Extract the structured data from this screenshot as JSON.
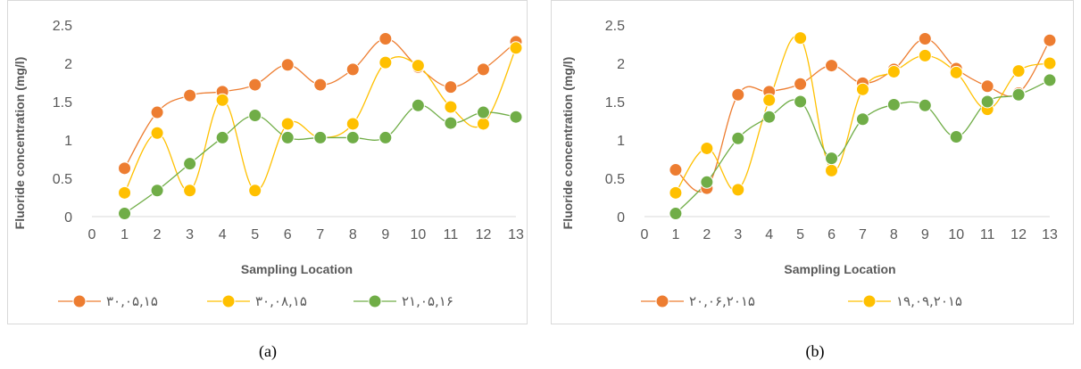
{
  "captions": {
    "a": "(a)",
    "b": "(b)"
  },
  "chart_data": [
    {
      "type": "line",
      "panel": "a",
      "xlabel": "Sampling Location",
      "ylabel": "Fluoride concentration (mg/l)",
      "xlim": [
        0,
        13
      ],
      "ylim": [
        0,
        2.5
      ],
      "x_ticks": [
        0,
        1,
        2,
        3,
        4,
        5,
        6,
        7,
        8,
        9,
        10,
        11,
        12,
        13
      ],
      "y_ticks": [
        0,
        0.5,
        1,
        1.5,
        2,
        2.5
      ],
      "x": [
        1,
        2,
        3,
        4,
        5,
        6,
        7,
        8,
        9,
        10,
        11,
        12,
        13
      ],
      "legend_position": "bottom",
      "series": [
        {
          "name": "۳۰,۰۵,۱۵",
          "color": "#ED7D31",
          "values": [
            0.63,
            1.36,
            1.58,
            1.63,
            1.72,
            1.98,
            1.72,
            1.92,
            2.32,
            1.95,
            1.69,
            1.92,
            2.28
          ]
        },
        {
          "name": "۳۰,۰۸,۱۵",
          "color": "#FFC000",
          "values": [
            0.31,
            1.09,
            0.34,
            1.52,
            0.34,
            1.21,
            1.03,
            1.21,
            2.01,
            1.97,
            1.43,
            1.21,
            2.2
          ]
        },
        {
          "name": "۲۱,۰۵,۱۶",
          "color": "#70AD47",
          "values": [
            0.04,
            0.34,
            0.69,
            1.03,
            1.32,
            1.03,
            1.03,
            1.03,
            1.03,
            1.45,
            1.22,
            1.36,
            1.3
          ]
        }
      ]
    },
    {
      "type": "line",
      "panel": "b",
      "xlabel": "Sampling Location",
      "ylabel": "Fluoride concentration (mg/l)",
      "xlim": [
        0,
        13
      ],
      "ylim": [
        0,
        2.5
      ],
      "x_ticks": [
        0,
        1,
        2,
        3,
        4,
        5,
        6,
        7,
        8,
        9,
        10,
        11,
        12,
        13
      ],
      "y_ticks": [
        0,
        0.5,
        1,
        1.5,
        2,
        2.5
      ],
      "x": [
        1,
        2,
        3,
        4,
        5,
        6,
        7,
        8,
        9,
        10,
        11,
        12,
        13
      ],
      "legend_position": "bottom",
      "series": [
        {
          "name": "۲۰,۰۶,۲۰۱۵",
          "color": "#ED7D31",
          "values": [
            0.61,
            0.37,
            1.59,
            1.63,
            1.73,
            1.97,
            1.74,
            1.92,
            2.32,
            1.93,
            1.7,
            1.61,
            2.3
          ]
        },
        {
          "name": "۱۹,۰۹,۲۰۱۵",
          "color": "#FFC000",
          "values": [
            0.31,
            0.89,
            0.35,
            1.52,
            2.33,
            0.6,
            1.66,
            1.89,
            2.1,
            1.88,
            1.4,
            1.9,
            2.0
          ]
        },
        {
          "name": "",
          "color": "#70AD47",
          "values": [
            0.04,
            0.45,
            1.02,
            1.3,
            1.5,
            0.76,
            1.27,
            1.46,
            1.45,
            1.04,
            1.5,
            1.59,
            1.78
          ]
        }
      ]
    }
  ]
}
